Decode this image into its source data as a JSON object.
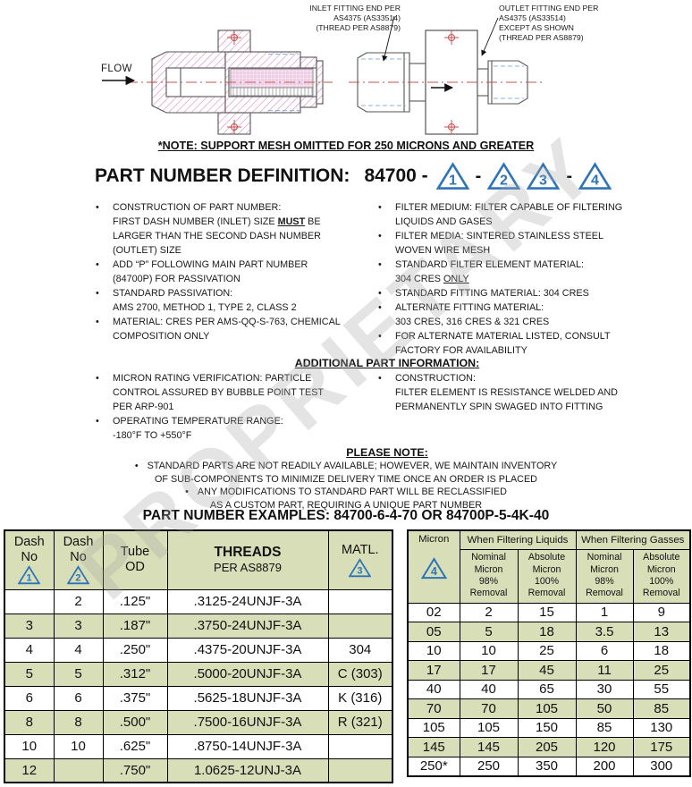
{
  "colors": {
    "accent_blue": "#2E74B5",
    "table_green": "#D8DFB8",
    "hatch_pink": "#DB79BC",
    "centerline_red": "#C0504D",
    "watermark_gray": "#A9A9A9"
  },
  "watermark": "PROPRIETARY",
  "drawing": {
    "flow_label": "FLOW",
    "inlet_label": "INLET FITTING END PER\nAS4375 (AS33514)\n(THREAD PER AS8879)",
    "outlet_label": "OUTLET FITTING END PER\nAS4375 (AS33514)\nEXCEPT AS SHOWN\n(THREAD PER AS8879)",
    "note": "*NOTE: SUPPORT MESH OMITTED FOR 250 MICRONS AND GREATER"
  },
  "part_number": {
    "heading": "PART NUMBER DEFINITION:",
    "base": "84700 -",
    "sequence": [
      "1",
      "-",
      "2",
      "3",
      "-",
      "4"
    ]
  },
  "definition": {
    "left_bullets": [
      "CONSTRUCTION OF PART NUMBER:\nFIRST DASH NUMBER (INLET) SIZE [bu]MUST[/bu] BE\nLARGER THAN THE SECOND DASH NUMBER\n(OUTLET) SIZE",
      "ADD “P” FOLLOWING MAIN PART NUMBER\n(84700P) FOR PASSIVATION",
      "STANDARD PASSIVATION:\nAMS 2700, METHOD 1, TYPE 2, CLASS 2",
      "MATERIAL: CRES PER AMS-QQ-S-763, CHEMICAL\nCOMPOSITION ONLY"
    ],
    "right_bullets": [
      "FILTER MEDIUM: FILTER CAPABLE OF FILTERING\nLIQUIDS AND GASES",
      "FILTER MEDIA: SINTERED STAINLESS STEEL\nWOVEN WIRE MESH",
      "STANDARD FILTER ELEMENT MATERIAL:\n304 CRES [u]ONLY[/u]",
      "STANDARD FITTING MATERIAL: 304 CRES",
      "ALTERNATE FITTING MATERIAL:\n303 CRES, 316 CRES & 321 CRES",
      "FOR ALTERNATE MATERIAL LISTED, CONSULT\nFACTORY FOR AVAILABILITY"
    ]
  },
  "additional": {
    "heading": "ADDITIONAL PART INFORMATION:",
    "left_bullets": [
      "MICRON RATING VERIFICATION: PARTICLE\nCONTROL ASSURED BY BUBBLE POINT TEST\nPER ARP-901",
      "OPERATING TEMPERATURE RANGE:\n-180°F TO +550°F"
    ],
    "right_bullets": [
      "CONSTRUCTION:\nFILTER ELEMENT IS RESISTANCE WELDED AND\nPERMANENTLY SPIN SWAGED INTO FITTING"
    ]
  },
  "please_note": {
    "heading": "PLEASE NOTE:",
    "items": [
      "STANDARD PARTS ARE NOT READILY AVAILABLE; HOWEVER, WE MAINTAIN INVENTORY\nOF SUB-COMPONENTS TO MINIMIZE DELIVERY TIME ONCE AN ORDER IS PLACED",
      "ANY MODIFICATIONS TO STANDARD PART WILL BE RECLASSIFIED\nAS A CUSTOM PART, REQUIRING A UNIQUE PART NUMBER"
    ]
  },
  "examples": {
    "text": "PART NUMBER EXAMPLES: 84700-6-4-70 OR 84700P-5-4K-40"
  },
  "size_table": {
    "headers": [
      {
        "lines": [
          "Dash",
          "No"
        ],
        "tri": "1"
      },
      {
        "lines": [
          "Dash",
          "No"
        ],
        "tri": "2"
      },
      {
        "lines": [
          "Tube",
          "OD"
        ]
      },
      {
        "lines": [
          "THREADS",
          "PER AS8879"
        ],
        "bold_first": true
      },
      {
        "lines": [
          "MATL."
        ],
        "tri": "3"
      }
    ],
    "rows": [
      [
        "",
        "2",
        ".125\"",
        ".3125-24UNJF-3A",
        ""
      ],
      [
        "3",
        "3",
        ".187\"",
        ".3750-24UNJF-3A",
        ""
      ],
      [
        "4",
        "4",
        ".250\"",
        ".4375-20UNJF-3A",
        "304"
      ],
      [
        "5",
        "5",
        ".312\"",
        ".5000-20UNJF-3A",
        "C (303)"
      ],
      [
        "6",
        "6",
        ".375\"",
        ".5625-18UNJF-3A",
        "K (316)"
      ],
      [
        "8",
        "8",
        ".500\"",
        ".7500-16UNJF-3A",
        "R (321)"
      ],
      [
        "10",
        "10",
        ".625\"",
        ".8750-14UNJF-3A",
        ""
      ],
      [
        "12",
        "",
        ".750\"",
        "1.0625-12UNJ-3A",
        ""
      ]
    ]
  },
  "micron_table": {
    "corner": {
      "label": "Micron",
      "tri": "4"
    },
    "groups": [
      "When Filtering Liquids",
      "When Filtering Gasses"
    ],
    "sub_headers": [
      "Nominal\nMicron\n98%\nRemoval",
      "Absolute\nMicron\n100%\nRemoval",
      "Nominal\nMicron\n98%\nRemoval",
      "Absolute\nMicron\n100%\nRemoval"
    ],
    "rows": [
      [
        "02",
        "2",
        "15",
        "1",
        "9"
      ],
      [
        "05",
        "5",
        "18",
        "3.5",
        "13"
      ],
      [
        "10",
        "10",
        "25",
        "6",
        "18"
      ],
      [
        "17",
        "17",
        "45",
        "11",
        "25"
      ],
      [
        "40",
        "40",
        "65",
        "30",
        "55"
      ],
      [
        "70",
        "70",
        "105",
        "50",
        "85"
      ],
      [
        "105",
        "105",
        "150",
        "85",
        "130"
      ],
      [
        "145",
        "145",
        "205",
        "120",
        "175"
      ],
      [
        "250*",
        "250",
        "350",
        "200",
        "300"
      ]
    ]
  }
}
